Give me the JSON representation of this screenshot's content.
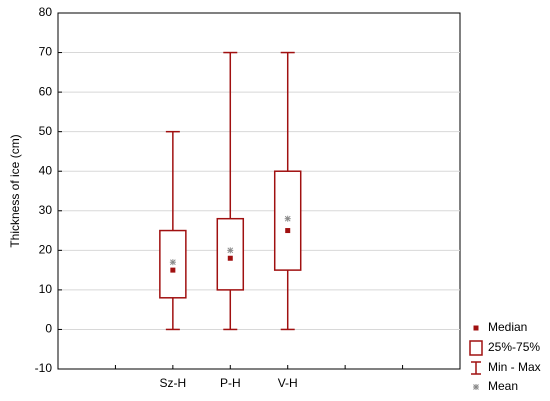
{
  "chart_data": {
    "type": "box",
    "y_label": "Thickness of ice (cm)",
    "categories": [
      "Sz-H",
      "P-H",
      "V-H"
    ],
    "min": [
      0,
      0,
      0
    ],
    "q1": [
      8,
      10,
      15
    ],
    "median": [
      15,
      18,
      25
    ],
    "q3": [
      25,
      28,
      40
    ],
    "max": [
      50,
      70,
      70
    ],
    "mean": [
      17,
      20,
      28
    ],
    "color": "#a01010",
    "mean_color": "#888888",
    "legend": [
      "Median",
      "25%-75%",
      "Min - Max",
      "Mean"
    ],
    "ylim": [
      -10,
      80
    ],
    "yticks": [
      -10,
      0,
      10,
      20,
      30,
      40,
      50,
      60,
      70,
      80
    ],
    "grid": true
  }
}
